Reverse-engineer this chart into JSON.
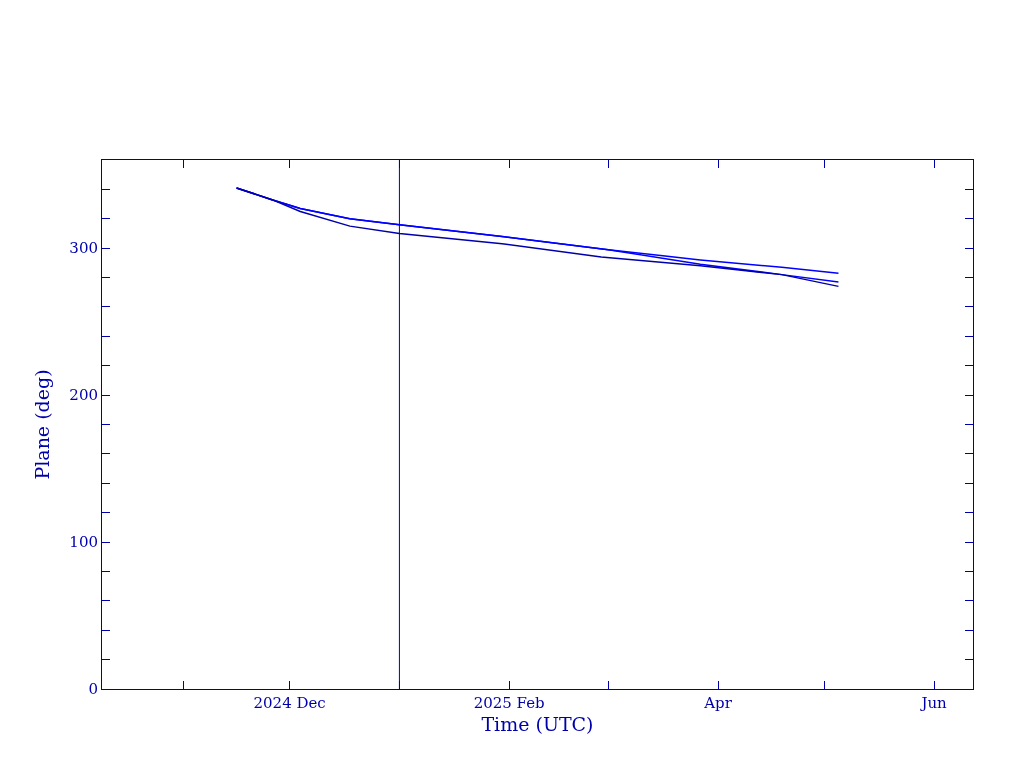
{
  "chart_data": {
    "type": "line",
    "xlabel": "Time (UTC)",
    "ylabel": "Plane (deg)",
    "xlim": [
      "2024-10-09",
      "2025-06-12"
    ],
    "xticks": [
      {
        "value": "2024-11-01",
        "label": null
      },
      {
        "value": "2024-12-01",
        "label": "2024 Dec"
      },
      {
        "value": "2025-01-01",
        "label": null
      },
      {
        "value": "2025-02-01",
        "label": "2025 Feb"
      },
      {
        "value": "2025-03-01",
        "label": null
      },
      {
        "value": "2025-04-01",
        "label": "Apr"
      },
      {
        "value": "2025-05-01",
        "label": null
      },
      {
        "value": "2025-06-01",
        "label": "Jun"
      }
    ],
    "ylim": [
      0,
      360
    ],
    "yticks": [
      0,
      {
        "value": 20,
        "label": null
      },
      {
        "value": 40,
        "label": null
      },
      {
        "value": 60,
        "label": null
      },
      {
        "value": 80,
        "label": null
      },
      100,
      {
        "value": 120,
        "label": null
      },
      {
        "value": 140,
        "label": null
      },
      {
        "value": 160,
        "label": null
      },
      {
        "value": 180,
        "label": null
      },
      200,
      {
        "value": 220,
        "label": null
      },
      {
        "value": 240,
        "label": null
      },
      {
        "value": 260,
        "label": null
      },
      {
        "value": 280,
        "label": null
      },
      300,
      {
        "value": 320,
        "label": null
      },
      {
        "value": 340,
        "label": null
      }
    ],
    "grid": false,
    "marker": "none",
    "line_style": "solid",
    "ref_lines": [
      {
        "axis": "x",
        "value": "2025-01-01",
        "color": "#0000aa"
      }
    ],
    "series": [
      {
        "color": "#0000ff",
        "x": [
          "2024-11-16",
          "2024-11-26",
          "2024-12-04",
          "2024-12-18",
          "2025-01-01",
          "2025-01-30",
          "2025-03-01",
          "2025-03-27",
          "2025-04-19",
          "2025-05-05"
        ],
        "values": [
          341,
          333,
          327,
          320,
          316,
          308,
          299,
          292,
          287,
          283
        ]
      },
      {
        "color": "#0000ff",
        "x": [
          "2024-11-16",
          "2024-11-26",
          "2024-12-04",
          "2024-12-18",
          "2025-01-01",
          "2025-01-30",
          "2025-03-01",
          "2025-03-27",
          "2025-04-19",
          "2025-05-05"
        ],
        "values": [
          341,
          333,
          327,
          320,
          316,
          308,
          299,
          289,
          282,
          277
        ]
      },
      {
        "color": "#0000aa",
        "x": [
          "2024-11-16",
          "2024-11-26",
          "2024-12-04",
          "2024-12-18",
          "2025-01-01",
          "2025-01-30",
          "2025-02-27",
          "2025-03-27",
          "2025-04-19",
          "2025-05-05"
        ],
        "values": [
          341,
          333,
          325,
          315,
          310,
          303,
          294,
          288,
          282,
          274
        ]
      }
    ]
  }
}
